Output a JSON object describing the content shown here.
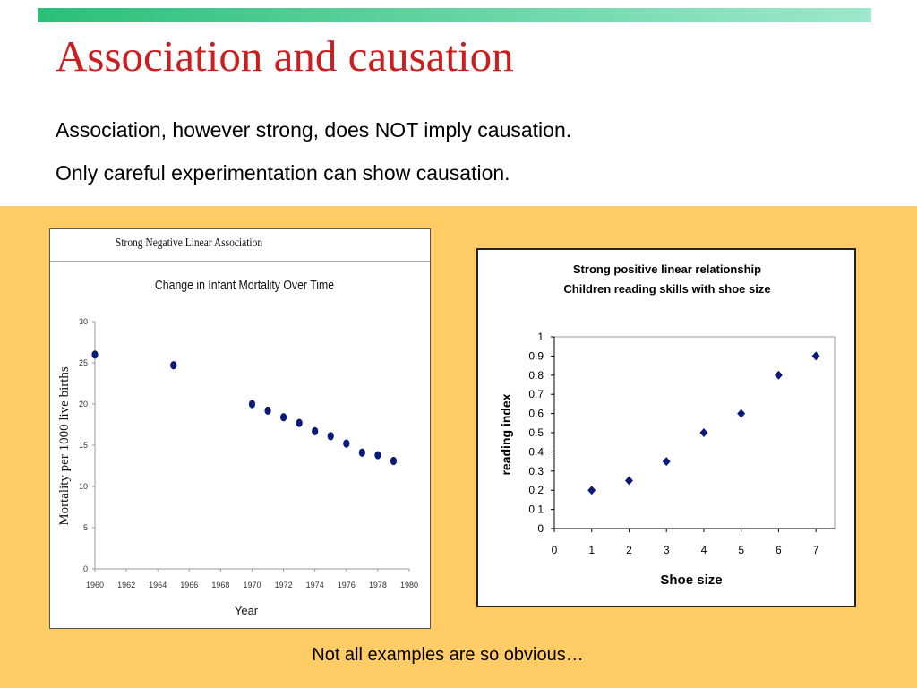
{
  "slide": {
    "title": "Association and causation",
    "bullets": [
      "Association, however strong, does NOT imply causation.",
      "Only careful experimentation can show causation."
    ],
    "footer": "Not all examples are so obvious…"
  },
  "colors": {
    "title": "#cc1e1e",
    "panel_background": "#ffcc66",
    "top_bar_start": "#2bbf7a",
    "top_bar_end": "#9ee8cd",
    "point": "#0a1a7a"
  },
  "chart_data": [
    {
      "type": "scatter",
      "header": "Strong Negative Linear Association",
      "title": "Change in Infant Mortality Over Time",
      "xlabel": "Year",
      "ylabel": "Mortality per 1000 live births",
      "xlim": [
        1960,
        1980
      ],
      "ylim": [
        0,
        30
      ],
      "x_ticks": [
        1960,
        1962,
        1964,
        1966,
        1968,
        1970,
        1972,
        1974,
        1976,
        1978,
        1980
      ],
      "y_ticks": [
        0,
        5,
        10,
        15,
        20,
        25,
        30
      ],
      "grid": false,
      "x": [
        1960,
        1965,
        1970,
        1971,
        1972,
        1973,
        1974,
        1975,
        1976,
        1977,
        1978,
        1979
      ],
      "y": [
        26.0,
        24.7,
        20.0,
        19.2,
        18.4,
        17.7,
        16.7,
        16.1,
        15.2,
        14.1,
        13.8,
        13.1
      ]
    },
    {
      "type": "scatter",
      "title": "Strong positive linear relationship",
      "subtitle": "Children reading skills with shoe size",
      "xlabel": "Shoe size",
      "ylabel": "reading index",
      "xlim": [
        0,
        7.5
      ],
      "ylim": [
        0,
        1
      ],
      "x_ticks": [
        0,
        1,
        2,
        3,
        4,
        5,
        6,
        7
      ],
      "y_ticks": [
        0,
        0.1,
        0.2,
        0.3,
        0.4,
        0.5,
        0.6,
        0.7,
        0.8,
        0.9,
        1
      ],
      "grid": false,
      "x": [
        1,
        2,
        3,
        4,
        5,
        6,
        7
      ],
      "y": [
        0.2,
        0.25,
        0.35,
        0.5,
        0.6,
        0.8,
        0.9
      ]
    }
  ]
}
